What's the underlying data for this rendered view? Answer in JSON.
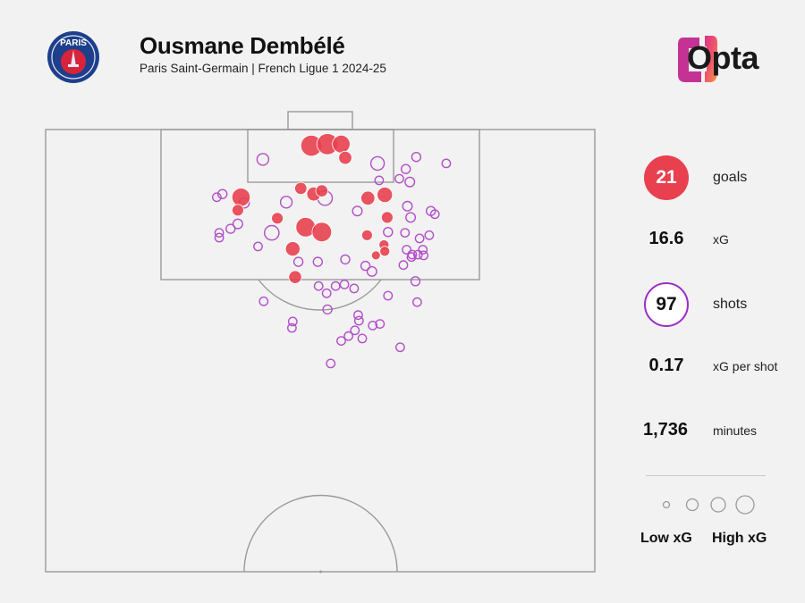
{
  "header": {
    "title": "Ousmane Dembélé",
    "subtitle": "Paris Saint-Germain | French Ligue 1 2024-25",
    "crest_text": "PARIS",
    "crest_icon": "psg-crest-icon",
    "brand": "Opta",
    "brand_icon": "opta-logo-icon"
  },
  "stats": [
    {
      "value": "21",
      "label": "goals",
      "style": "goal-badge"
    },
    {
      "value": "16.6",
      "label": "xG",
      "style": "plain"
    },
    {
      "value": "97",
      "label": "shots",
      "style": "shot-badge"
    },
    {
      "value": "0.17",
      "label": "xG per shot",
      "style": "plain"
    },
    {
      "value": "1,736",
      "label": "minutes",
      "style": "plain"
    }
  ],
  "legend": {
    "low": "Low xG",
    "high": "High xG"
  },
  "colors": {
    "goal": "#e8404f",
    "shot": "#b24fc9",
    "pitch_line": "#9a9a9a",
    "background": "#f2f2f2"
  },
  "chart_data": {
    "type": "scatter",
    "description_units": "shot locations; x = metres across pitch width (0-68, left touchline to right), y = metres from goal line (0 at goal line), size = xG",
    "xlim": [
      0,
      68
    ],
    "ylim": [
      0,
      52.5
    ],
    "series": [
      {
        "name": "goals",
        "points": [
          {
            "x": 32.9,
            "y": 2.0,
            "xg": 0.55
          },
          {
            "x": 34.9,
            "y": 1.8,
            "xg": 0.55
          },
          {
            "x": 36.6,
            "y": 1.8,
            "xg": 0.35
          },
          {
            "x": 37.1,
            "y": 3.5,
            "xg": 0.15
          },
          {
            "x": 24.2,
            "y": 8.4,
            "xg": 0.38
          },
          {
            "x": 31.6,
            "y": 7.3,
            "xg": 0.12
          },
          {
            "x": 33.2,
            "y": 8.0,
            "xg": 0.18
          },
          {
            "x": 34.2,
            "y": 7.6,
            "xg": 0.12
          },
          {
            "x": 39.9,
            "y": 8.5,
            "xg": 0.18
          },
          {
            "x": 42.0,
            "y": 8.1,
            "xg": 0.24
          },
          {
            "x": 23.8,
            "y": 10.0,
            "xg": 0.1
          },
          {
            "x": 28.7,
            "y": 11.0,
            "xg": 0.1
          },
          {
            "x": 42.3,
            "y": 10.9,
            "xg": 0.1
          },
          {
            "x": 32.2,
            "y": 12.1,
            "xg": 0.45
          },
          {
            "x": 34.2,
            "y": 12.7,
            "xg": 0.45
          },
          {
            "x": 39.8,
            "y": 13.1,
            "xg": 0.08
          },
          {
            "x": 41.9,
            "y": 14.3,
            "xg": 0.06
          },
          {
            "x": 42.0,
            "y": 15.1,
            "xg": 0.06
          },
          {
            "x": 30.6,
            "y": 14.8,
            "xg": 0.2
          },
          {
            "x": 40.9,
            "y": 15.6,
            "xg": 0.04
          },
          {
            "x": 30.9,
            "y": 18.3,
            "xg": 0.14
          }
        ]
      },
      {
        "name": "shots",
        "points": [
          {
            "x": 26.9,
            "y": 3.7,
            "xg": 0.1
          },
          {
            "x": 41.1,
            "y": 4.2,
            "xg": 0.16
          },
          {
            "x": 45.9,
            "y": 3.4,
            "xg": 0.04
          },
          {
            "x": 44.6,
            "y": 4.9,
            "xg": 0.04
          },
          {
            "x": 49.6,
            "y": 4.2,
            "xg": 0.03
          },
          {
            "x": 41.3,
            "y": 6.3,
            "xg": 0.03
          },
          {
            "x": 43.8,
            "y": 6.1,
            "xg": 0.03
          },
          {
            "x": 45.1,
            "y": 6.5,
            "xg": 0.05
          },
          {
            "x": 21.2,
            "y": 8.4,
            "xg": 0.03
          },
          {
            "x": 21.9,
            "y": 8.0,
            "xg": 0.04
          },
          {
            "x": 34.6,
            "y": 8.5,
            "xg": 0.2
          },
          {
            "x": 24.6,
            "y": 9.1,
            "xg": 0.06
          },
          {
            "x": 29.8,
            "y": 9.0,
            "xg": 0.1
          },
          {
            "x": 44.8,
            "y": 9.5,
            "xg": 0.05
          },
          {
            "x": 38.6,
            "y": 10.1,
            "xg": 0.05
          },
          {
            "x": 47.7,
            "y": 10.1,
            "xg": 0.04
          },
          {
            "x": 48.2,
            "y": 10.5,
            "xg": 0.03
          },
          {
            "x": 45.2,
            "y": 10.9,
            "xg": 0.05
          },
          {
            "x": 23.8,
            "y": 11.7,
            "xg": 0.05
          },
          {
            "x": 22.9,
            "y": 12.3,
            "xg": 0.04
          },
          {
            "x": 28.0,
            "y": 12.8,
            "xg": 0.2
          },
          {
            "x": 21.5,
            "y": 12.8,
            "xg": 0.03
          },
          {
            "x": 21.5,
            "y": 13.4,
            "xg": 0.03
          },
          {
            "x": 42.4,
            "y": 12.7,
            "xg": 0.04
          },
          {
            "x": 44.5,
            "y": 12.8,
            "xg": 0.03
          },
          {
            "x": 47.5,
            "y": 13.1,
            "xg": 0.03
          },
          {
            "x": 46.3,
            "y": 13.5,
            "xg": 0.03
          },
          {
            "x": 26.3,
            "y": 14.5,
            "xg": 0.03
          },
          {
            "x": 44.7,
            "y": 14.9,
            "xg": 0.03
          },
          {
            "x": 46.7,
            "y": 14.9,
            "xg": 0.03
          },
          {
            "x": 45.4,
            "y": 15.5,
            "xg": 0.03
          },
          {
            "x": 46.1,
            "y": 15.5,
            "xg": 0.03
          },
          {
            "x": 46.8,
            "y": 15.6,
            "xg": 0.03
          },
          {
            "x": 31.3,
            "y": 16.4,
            "xg": 0.04
          },
          {
            "x": 33.7,
            "y": 16.4,
            "xg": 0.04
          },
          {
            "x": 37.1,
            "y": 16.1,
            "xg": 0.04
          },
          {
            "x": 39.6,
            "y": 16.9,
            "xg": 0.04
          },
          {
            "x": 44.3,
            "y": 16.8,
            "xg": 0.03
          },
          {
            "x": 45.3,
            "y": 15.8,
            "xg": 0.03
          },
          {
            "x": 40.4,
            "y": 17.6,
            "xg": 0.05
          },
          {
            "x": 45.8,
            "y": 18.8,
            "xg": 0.04
          },
          {
            "x": 33.8,
            "y": 19.4,
            "xg": 0.03
          },
          {
            "x": 37.0,
            "y": 19.2,
            "xg": 0.03
          },
          {
            "x": 35.9,
            "y": 19.4,
            "xg": 0.03
          },
          {
            "x": 38.2,
            "y": 19.7,
            "xg": 0.03
          },
          {
            "x": 34.8,
            "y": 20.3,
            "xg": 0.03
          },
          {
            "x": 42.4,
            "y": 20.6,
            "xg": 0.03
          },
          {
            "x": 27.0,
            "y": 21.3,
            "xg": 0.03
          },
          {
            "x": 46.0,
            "y": 21.4,
            "xg": 0.03
          },
          {
            "x": 34.9,
            "y": 22.3,
            "xg": 0.04
          },
          {
            "x": 38.7,
            "y": 23.0,
            "xg": 0.03
          },
          {
            "x": 38.8,
            "y": 23.7,
            "xg": 0.03
          },
          {
            "x": 30.6,
            "y": 23.8,
            "xg": 0.03
          },
          {
            "x": 30.5,
            "y": 24.6,
            "xg": 0.03
          },
          {
            "x": 41.4,
            "y": 24.1,
            "xg": 0.03
          },
          {
            "x": 40.5,
            "y": 24.3,
            "xg": 0.03
          },
          {
            "x": 38.3,
            "y": 24.9,
            "xg": 0.03
          },
          {
            "x": 37.5,
            "y": 25.6,
            "xg": 0.03
          },
          {
            "x": 39.2,
            "y": 25.9,
            "xg": 0.03
          },
          {
            "x": 36.6,
            "y": 26.2,
            "xg": 0.03
          },
          {
            "x": 43.9,
            "y": 27.0,
            "xg": 0.03
          },
          {
            "x": 35.3,
            "y": 29.0,
            "xg": 0.03
          }
        ]
      }
    ]
  }
}
